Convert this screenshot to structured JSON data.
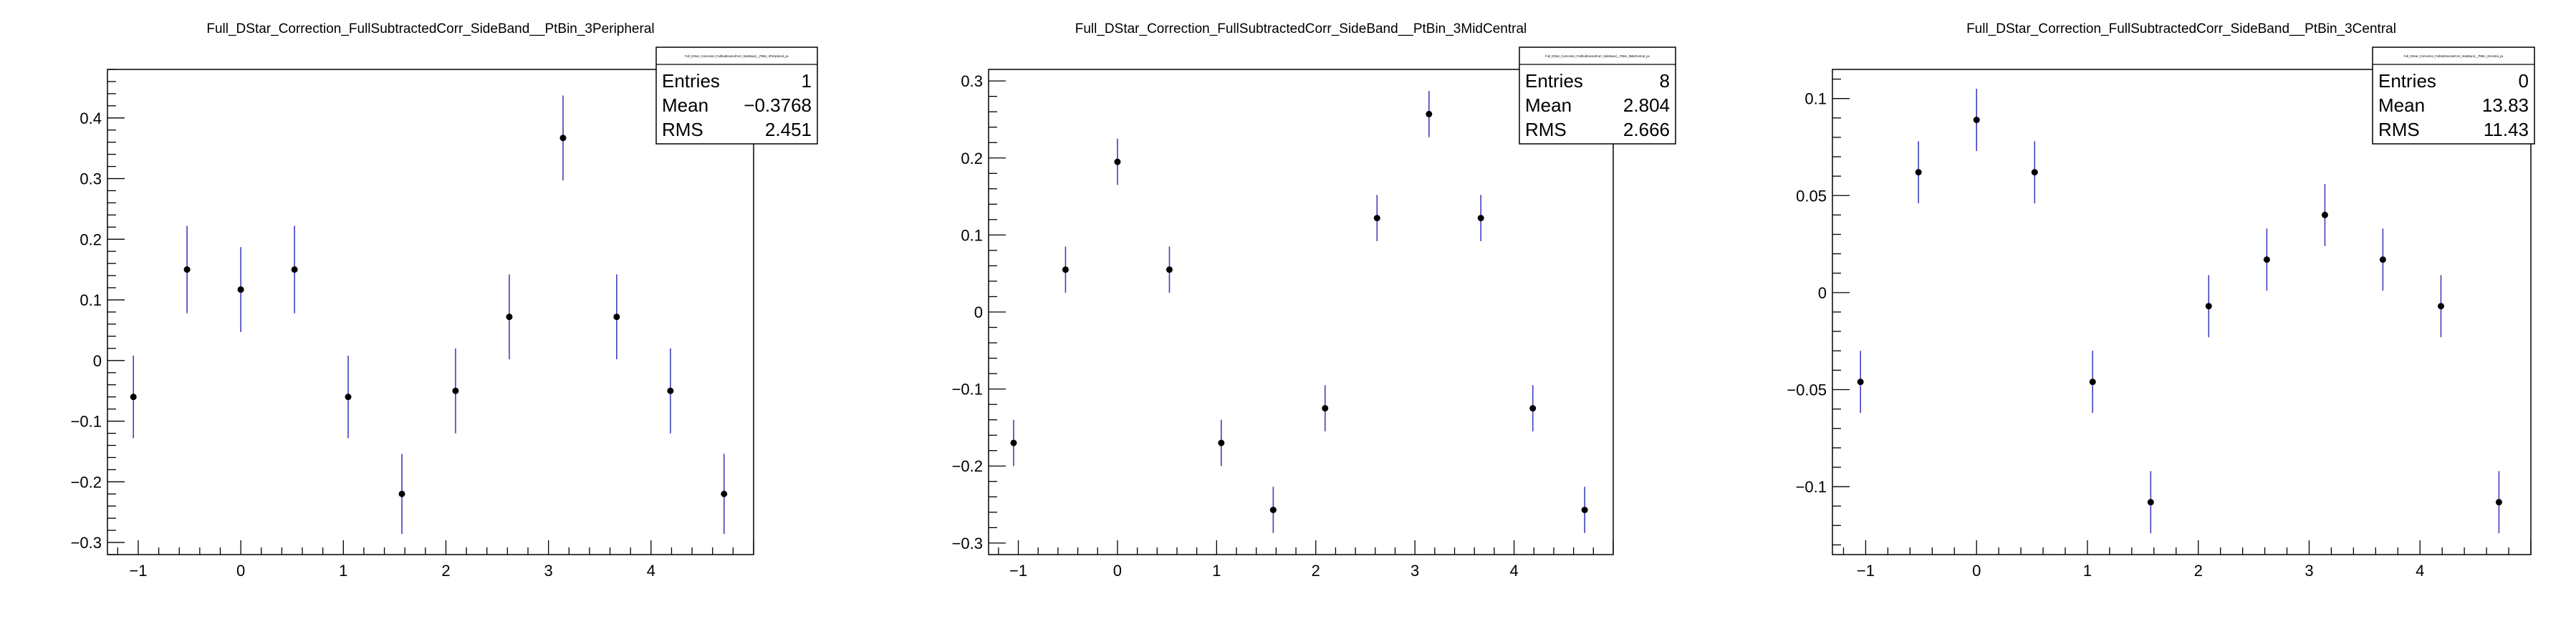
{
  "chart_data": [
    {
      "type": "scatter",
      "title": "Full_DStar_Correction_FullSubtractedCorr_SideBand__PtBin_3Peripheral",
      "x": [
        -1.047,
        -0.524,
        0.0,
        0.524,
        1.047,
        1.571,
        2.094,
        2.618,
        3.142,
        3.665,
        4.189,
        4.712
      ],
      "y": [
        -0.06,
        0.15,
        0.117,
        0.15,
        -0.06,
        -0.22,
        -0.05,
        0.072,
        0.367,
        0.072,
        -0.05,
        -0.22
      ],
      "yerr": [
        0.068,
        0.072,
        0.07,
        0.072,
        0.068,
        0.066,
        0.07,
        0.07,
        0.07,
        0.07,
        0.07,
        0.066
      ],
      "xticks": [
        "−1",
        "0",
        "1",
        "2",
        "3",
        "4"
      ],
      "yticks": [
        "−0.3",
        "−0.2",
        "−0.1",
        "0",
        "0.1",
        "0.2",
        "0.3",
        "0.4"
      ],
      "xlim": [
        -1.3,
        5.0
      ],
      "ylim": [
        -0.32,
        0.48
      ],
      "yticks_values": [
        -0.3,
        -0.2,
        -0.1,
        0,
        0.1,
        0.2,
        0.3,
        0.4
      ],
      "stats": {
        "header": "Full_DStar_Correction_FullSubtractedCorr_SideBand__PtBin_3Peripheral_px",
        "rows": [
          {
            "label": "Entries",
            "value": "1"
          },
          {
            "label": "Mean",
            "value": "−0.3768"
          },
          {
            "label": "RMS",
            "value": "2.451"
          }
        ]
      }
    },
    {
      "type": "scatter",
      "title": "Full_DStar_Correction_FullSubtractedCorr_SideBand__PtBin_3MidCentral",
      "x": [
        -1.047,
        -0.524,
        0.0,
        0.524,
        1.047,
        1.571,
        2.094,
        2.618,
        3.142,
        3.665,
        4.189,
        4.712
      ],
      "y": [
        -0.17,
        0.055,
        0.195,
        0.055,
        -0.17,
        -0.257,
        -0.125,
        0.122,
        0.257,
        0.122,
        -0.125,
        -0.257
      ],
      "yerr": [
        0.03,
        0.03,
        0.03,
        0.03,
        0.03,
        0.03,
        0.03,
        0.03,
        0.03,
        0.03,
        0.03,
        0.03
      ],
      "xticks": [
        "−1",
        "0",
        "1",
        "2",
        "3",
        "4"
      ],
      "yticks": [
        "−0.3",
        "−0.2",
        "−0.1",
        "0",
        "0.1",
        "0.2",
        "0.3"
      ],
      "xlim": [
        -1.3,
        5.0
      ],
      "ylim": [
        -0.315,
        0.315
      ],
      "yticks_values": [
        -0.3,
        -0.2,
        -0.1,
        0,
        0.1,
        0.2,
        0.3
      ],
      "stats": {
        "header": "Full_DStar_Correction_FullSubtractedCorr_SideBand__PtBin_3MidCentral_px",
        "rows": [
          {
            "label": "Entries",
            "value": "8"
          },
          {
            "label": "Mean",
            "value": "2.804"
          },
          {
            "label": "RMS",
            "value": "2.666"
          }
        ]
      }
    },
    {
      "type": "scatter",
      "title": "Full_DStar_Correction_FullSubtractedCorr_SideBand__PtBin_3Central",
      "x": [
        -1.047,
        -0.524,
        0.0,
        0.524,
        1.047,
        1.571,
        2.094,
        2.618,
        3.142,
        3.665,
        4.189,
        4.712
      ],
      "y": [
        -0.046,
        0.062,
        0.089,
        0.062,
        -0.046,
        -0.108,
        -0.007,
        0.017,
        0.04,
        0.017,
        -0.007,
        -0.108
      ],
      "yerr": [
        0.016,
        0.016,
        0.016,
        0.016,
        0.016,
        0.016,
        0.016,
        0.016,
        0.016,
        0.016,
        0.016,
        0.016
      ],
      "xticks": [
        "−1",
        "0",
        "1",
        "2",
        "3",
        "4"
      ],
      "yticks": [
        "−0.1",
        "−0.05",
        "0",
        "0.05",
        "0.1"
      ],
      "xlim": [
        -1.3,
        5.0
      ],
      "ylim": [
        -0.135,
        0.115
      ],
      "yticks_values": [
        -0.1,
        -0.05,
        0,
        0.05,
        0.1
      ],
      "stats": {
        "header": "Full_DStar_Correction_FullSubtractedCorr_SideBand__PtBin_3Central_px",
        "rows": [
          {
            "label": "Entries",
            "value": "0"
          },
          {
            "label": "Mean",
            "value": "13.83"
          },
          {
            "label": "RMS",
            "value": "11.43"
          }
        ]
      }
    }
  ],
  "colors": {
    "errorbar": "#3f3fbf",
    "marker": "#000000",
    "frame": "#000000"
  }
}
